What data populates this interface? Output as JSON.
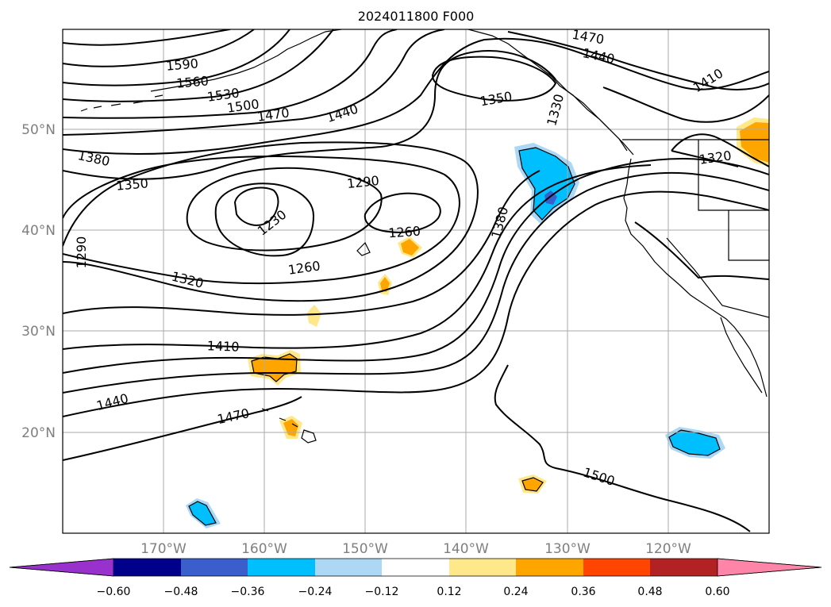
{
  "title": "2024011800 F000",
  "lat_labels": [
    "50°N",
    "40°N",
    "30°N",
    "20°N"
  ],
  "lon_labels": [
    "170°W",
    "160°W",
    "150°W",
    "140°W",
    "130°W",
    "120°W"
  ],
  "contour_labels": [
    "1590",
    "1560",
    "1530",
    "1500",
    "1470",
    "1440",
    "1380",
    "1350",
    "1290",
    "1230",
    "1260",
    "1290",
    "1260",
    "1320",
    "1410",
    "1440",
    "1470",
    "1350",
    "1330",
    "1380",
    "1470",
    "1440",
    "1410",
    "1320",
    "1500"
  ],
  "colorbar": {
    "ticks": [
      "−0.60",
      "−0.48",
      "−0.36",
      "−0.24",
      "−0.12",
      "0.12",
      "0.24",
      "0.36",
      "0.48",
      "0.60"
    ],
    "colors": [
      "#9932cc",
      "#00008b",
      "#3a5fcd",
      "#00bfff",
      "#add8f5",
      "#ffffff",
      "#ffe88a",
      "#ffa500",
      "#ff4500",
      "#b22222",
      "#ff85a8"
    ]
  }
}
